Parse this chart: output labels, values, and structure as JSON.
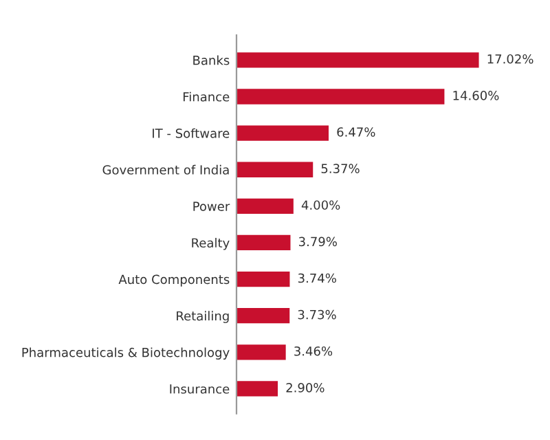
{
  "chart_data": {
    "type": "bar",
    "orientation": "horizontal",
    "categories": [
      "Banks",
      "Finance",
      "IT - Software",
      "Government of India",
      "Power",
      "Realty",
      "Auto Components",
      "Retailing",
      "Pharmaceuticals & Biotechnology",
      "Insurance"
    ],
    "values": [
      17.02,
      14.6,
      6.47,
      5.37,
      4.0,
      3.79,
      3.74,
      3.73,
      3.46,
      2.9
    ],
    "value_labels": [
      "17.02%",
      "14.60%",
      "6.47%",
      "5.37%",
      "4.00%",
      "3.79%",
      "3.74%",
      "3.73%",
      "3.46%",
      "2.90%"
    ],
    "color": "#c8102e",
    "tick_labels": "y"
  }
}
